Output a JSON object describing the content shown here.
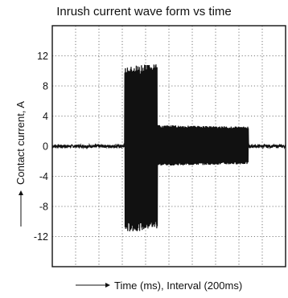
{
  "chart_data": {
    "type": "line",
    "title": "Inrush current wave form vs time",
    "xlabel": "Time (ms), Interval (200ms)",
    "ylabel": "Contact current, A",
    "ylim": [
      -16,
      16
    ],
    "y_ticks": [
      12,
      8,
      4,
      0,
      -4,
      -8,
      -12
    ],
    "x_gridlines": 10,
    "grid": true,
    "series": [
      {
        "envelope": [
          {
            "t": 0.0,
            "upper": 0.2,
            "lower": -0.2
          },
          {
            "t": 0.3,
            "upper": 0.2,
            "lower": -0.2
          },
          {
            "t": 0.31,
            "upper": 10.5,
            "lower": -11.5
          },
          {
            "t": 0.44,
            "upper": 11.0,
            "lower": -11.0
          },
          {
            "t": 0.45,
            "upper": 2.8,
            "lower": -2.6
          },
          {
            "t": 0.83,
            "upper": 2.6,
            "lower": -2.4
          },
          {
            "t": 0.84,
            "upper": 0.2,
            "lower": -0.2
          },
          {
            "t": 1.0,
            "upper": 0.2,
            "lower": -0.2
          }
        ]
      }
    ]
  }
}
